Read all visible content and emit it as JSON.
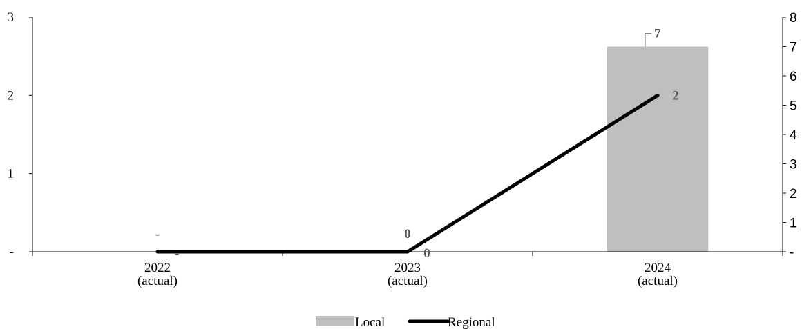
{
  "chart_data": {
    "type": "bar+line",
    "categories": [
      [
        "2022",
        "(actual)"
      ],
      [
        "2023",
        "(actual)"
      ],
      [
        "2024",
        "(actual)"
      ]
    ],
    "series": [
      {
        "name": "Local",
        "type": "bar",
        "axis": "right",
        "color": "#bfbfbf",
        "values": [
          0,
          0,
          7
        ],
        "labels": [
          "-",
          "0",
          "7"
        ]
      },
      {
        "name": "Regional",
        "type": "line",
        "axis": "left",
        "color": "#000000",
        "values": [
          0,
          0,
          2
        ],
        "labels": [
          "-",
          "0",
          "2"
        ]
      }
    ],
    "y_left": {
      "ylim": [
        0,
        3
      ],
      "ticks": [
        0,
        1,
        2,
        3
      ],
      "tick_labels": [
        "-",
        "1",
        "2",
        "3"
      ]
    },
    "y_right": {
      "ylim": [
        0,
        8
      ],
      "ticks": [
        0,
        1,
        2,
        3,
        4,
        5,
        6,
        7,
        8
      ],
      "tick_labels": [
        "-",
        "1",
        "2",
        "3",
        "4",
        "5",
        "6",
        "7",
        "8"
      ]
    },
    "legend": {
      "position": "bottom",
      "items": [
        "Local",
        "Regional"
      ]
    },
    "grid": false
  }
}
